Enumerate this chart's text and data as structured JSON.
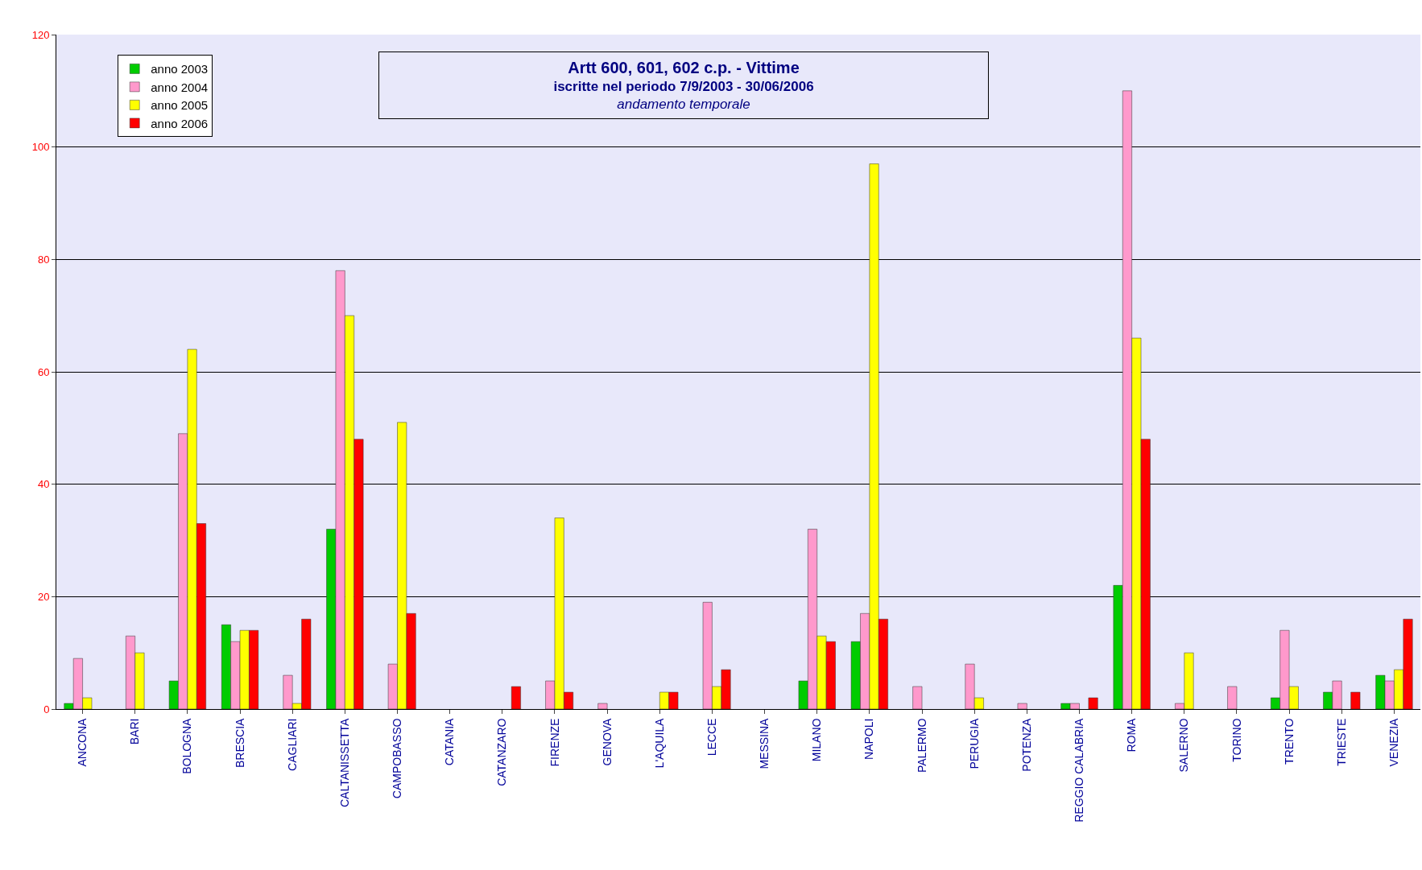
{
  "chart_data": {
    "type": "bar",
    "title": "Artt 600, 601, 602 c.p. - Vittime",
    "subtitle": "iscritte nel periodo 7/9/2003 - 30/06/2006",
    "annotations": [
      "andamento temporale"
    ],
    "categories": [
      "ANCONA",
      "BARI",
      "BOLOGNA",
      "BRESCIA",
      "CAGLIARI",
      "CALTANISSETTA",
      "CAMPOBASSO",
      "CATANIA",
      "CATANZARO",
      "FIRENZE",
      "GENOVA",
      "L'AQUILA",
      "LECCE",
      "MESSINA",
      "MILANO",
      "NAPOLI",
      "PALERMO",
      "PERUGIA",
      "POTENZA",
      "REGGIO CALABRIA",
      "ROMA",
      "SALERNO",
      "TORINO",
      "TRENTO",
      "TRIESTE",
      "VENEZIA"
    ],
    "series": [
      {
        "name": "anno 2003",
        "color": "#00cc00",
        "values": [
          1,
          null,
          5,
          15,
          null,
          32,
          null,
          null,
          null,
          null,
          null,
          null,
          null,
          null,
          5,
          12,
          null,
          null,
          null,
          1,
          22,
          null,
          null,
          2,
          3,
          6
        ]
      },
      {
        "name": "anno 2004",
        "color": "#ff99cc",
        "values": [
          9,
          13,
          49,
          12,
          6,
          78,
          8,
          null,
          null,
          5,
          1,
          null,
          19,
          null,
          32,
          17,
          4,
          8,
          1,
          1,
          110,
          1,
          4,
          14,
          5,
          5
        ]
      },
      {
        "name": "anno 2005",
        "color": "#ffff00",
        "values": [
          2,
          10,
          64,
          14,
          1,
          70,
          51,
          null,
          null,
          34,
          null,
          3,
          4,
          null,
          13,
          97,
          null,
          2,
          null,
          null,
          66,
          10,
          null,
          4,
          null,
          7
        ]
      },
      {
        "name": "anno 2006",
        "color": "#ff0000",
        "values": [
          null,
          null,
          33,
          14,
          16,
          48,
          17,
          null,
          4,
          3,
          null,
          3,
          7,
          null,
          12,
          16,
          null,
          null,
          null,
          2,
          48,
          null,
          null,
          null,
          3,
          16
        ]
      }
    ],
    "ylim": [
      0,
      120
    ],
    "yticks": [
      0,
      20,
      40,
      60,
      80,
      100,
      120
    ],
    "grid": "y",
    "legend": "top left"
  }
}
